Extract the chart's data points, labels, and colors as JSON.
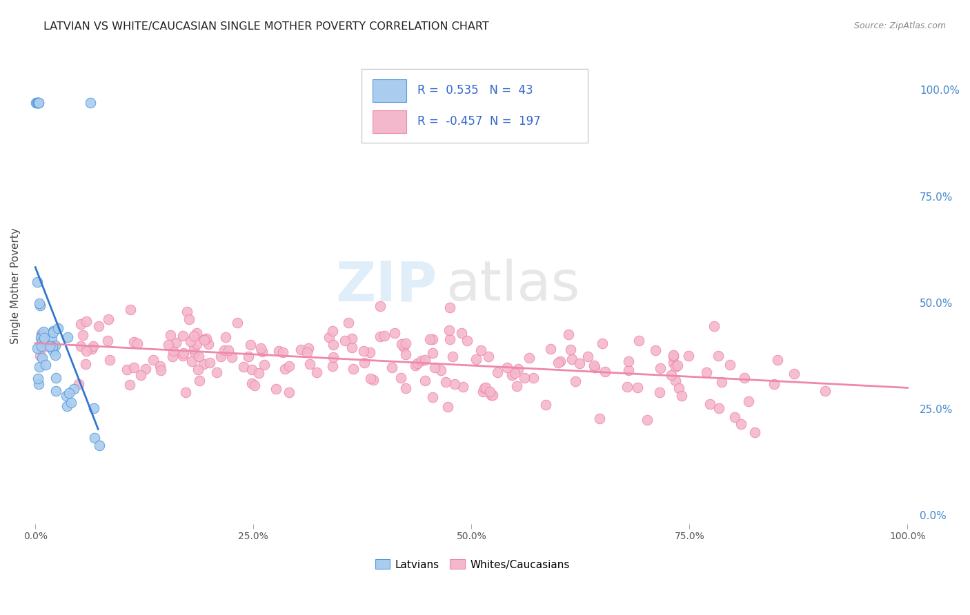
{
  "title": "LATVIAN VS WHITE/CAUCASIAN SINGLE MOTHER POVERTY CORRELATION CHART",
  "source": "Source: ZipAtlas.com",
  "ylabel": "Single Mother Poverty",
  "watermark_zip": "ZIP",
  "watermark_atlas": "atlas",
  "latvian_R": 0.535,
  "latvian_N": 43,
  "white_R": -0.457,
  "white_N": 197,
  "latvian_color": "#aaccee",
  "white_color": "#f4b8cc",
  "latvian_edge_color": "#5599dd",
  "white_edge_color": "#ee88aa",
  "latvian_line_color": "#3377cc",
  "white_line_color": "#ee88aa",
  "background_color": "#ffffff",
  "grid_color": "#cccccc",
  "right_axis_color": "#4488cc",
  "title_color": "#222222",
  "source_color": "#888888",
  "ylabel_color": "#444444"
}
